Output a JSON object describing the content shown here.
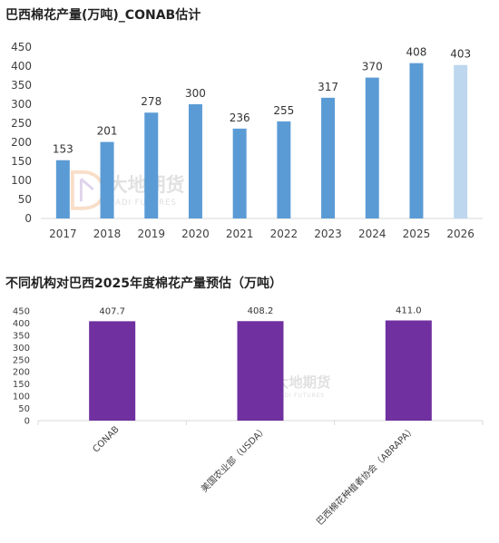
{
  "watermark": {
    "cn": "大地期货",
    "en": "DADI FUTURES"
  },
  "chart_data": [
    {
      "type": "bar",
      "title": "巴西棉花产量(万吨)_CONAB估计",
      "categories": [
        "2017",
        "2018",
        "2019",
        "2020",
        "2021",
        "2022",
        "2023",
        "2024",
        "2025",
        "2026"
      ],
      "values": [
        153,
        201,
        278,
        300,
        236,
        255,
        317,
        370,
        408,
        403
      ],
      "data_labels": [
        "153",
        "201",
        "278",
        "300",
        "236",
        "255",
        "317",
        "370",
        "408",
        "403"
      ],
      "yticks": [
        "0",
        "50",
        "100",
        "150",
        "200",
        "250",
        "300",
        "350",
        "400",
        "450"
      ],
      "ylim": [
        0,
        450
      ],
      "bar_color": "#5b9bd5",
      "highlight_color": "#bdd7ee",
      "highlight_index": 9,
      "grid": false,
      "xlabel": "",
      "ylabel": ""
    },
    {
      "type": "bar",
      "title": "不同机构对巴西2025年度棉花产量预估（万吨）",
      "categories": [
        "CONAB",
        "美国农业部（USDA）",
        "巴西棉花种植者协会（ABRAPA）"
      ],
      "values": [
        407.7,
        408.2,
        411.0
      ],
      "data_labels": [
        "407.7",
        "408.2",
        "411.0"
      ],
      "yticks": [
        "0",
        "50",
        "100",
        "150",
        "200",
        "250",
        "300",
        "350",
        "400",
        "450"
      ],
      "ylim": [
        0,
        450
      ],
      "bar_color": "#7030a0",
      "grid": false,
      "xlabel": "",
      "ylabel": ""
    }
  ]
}
